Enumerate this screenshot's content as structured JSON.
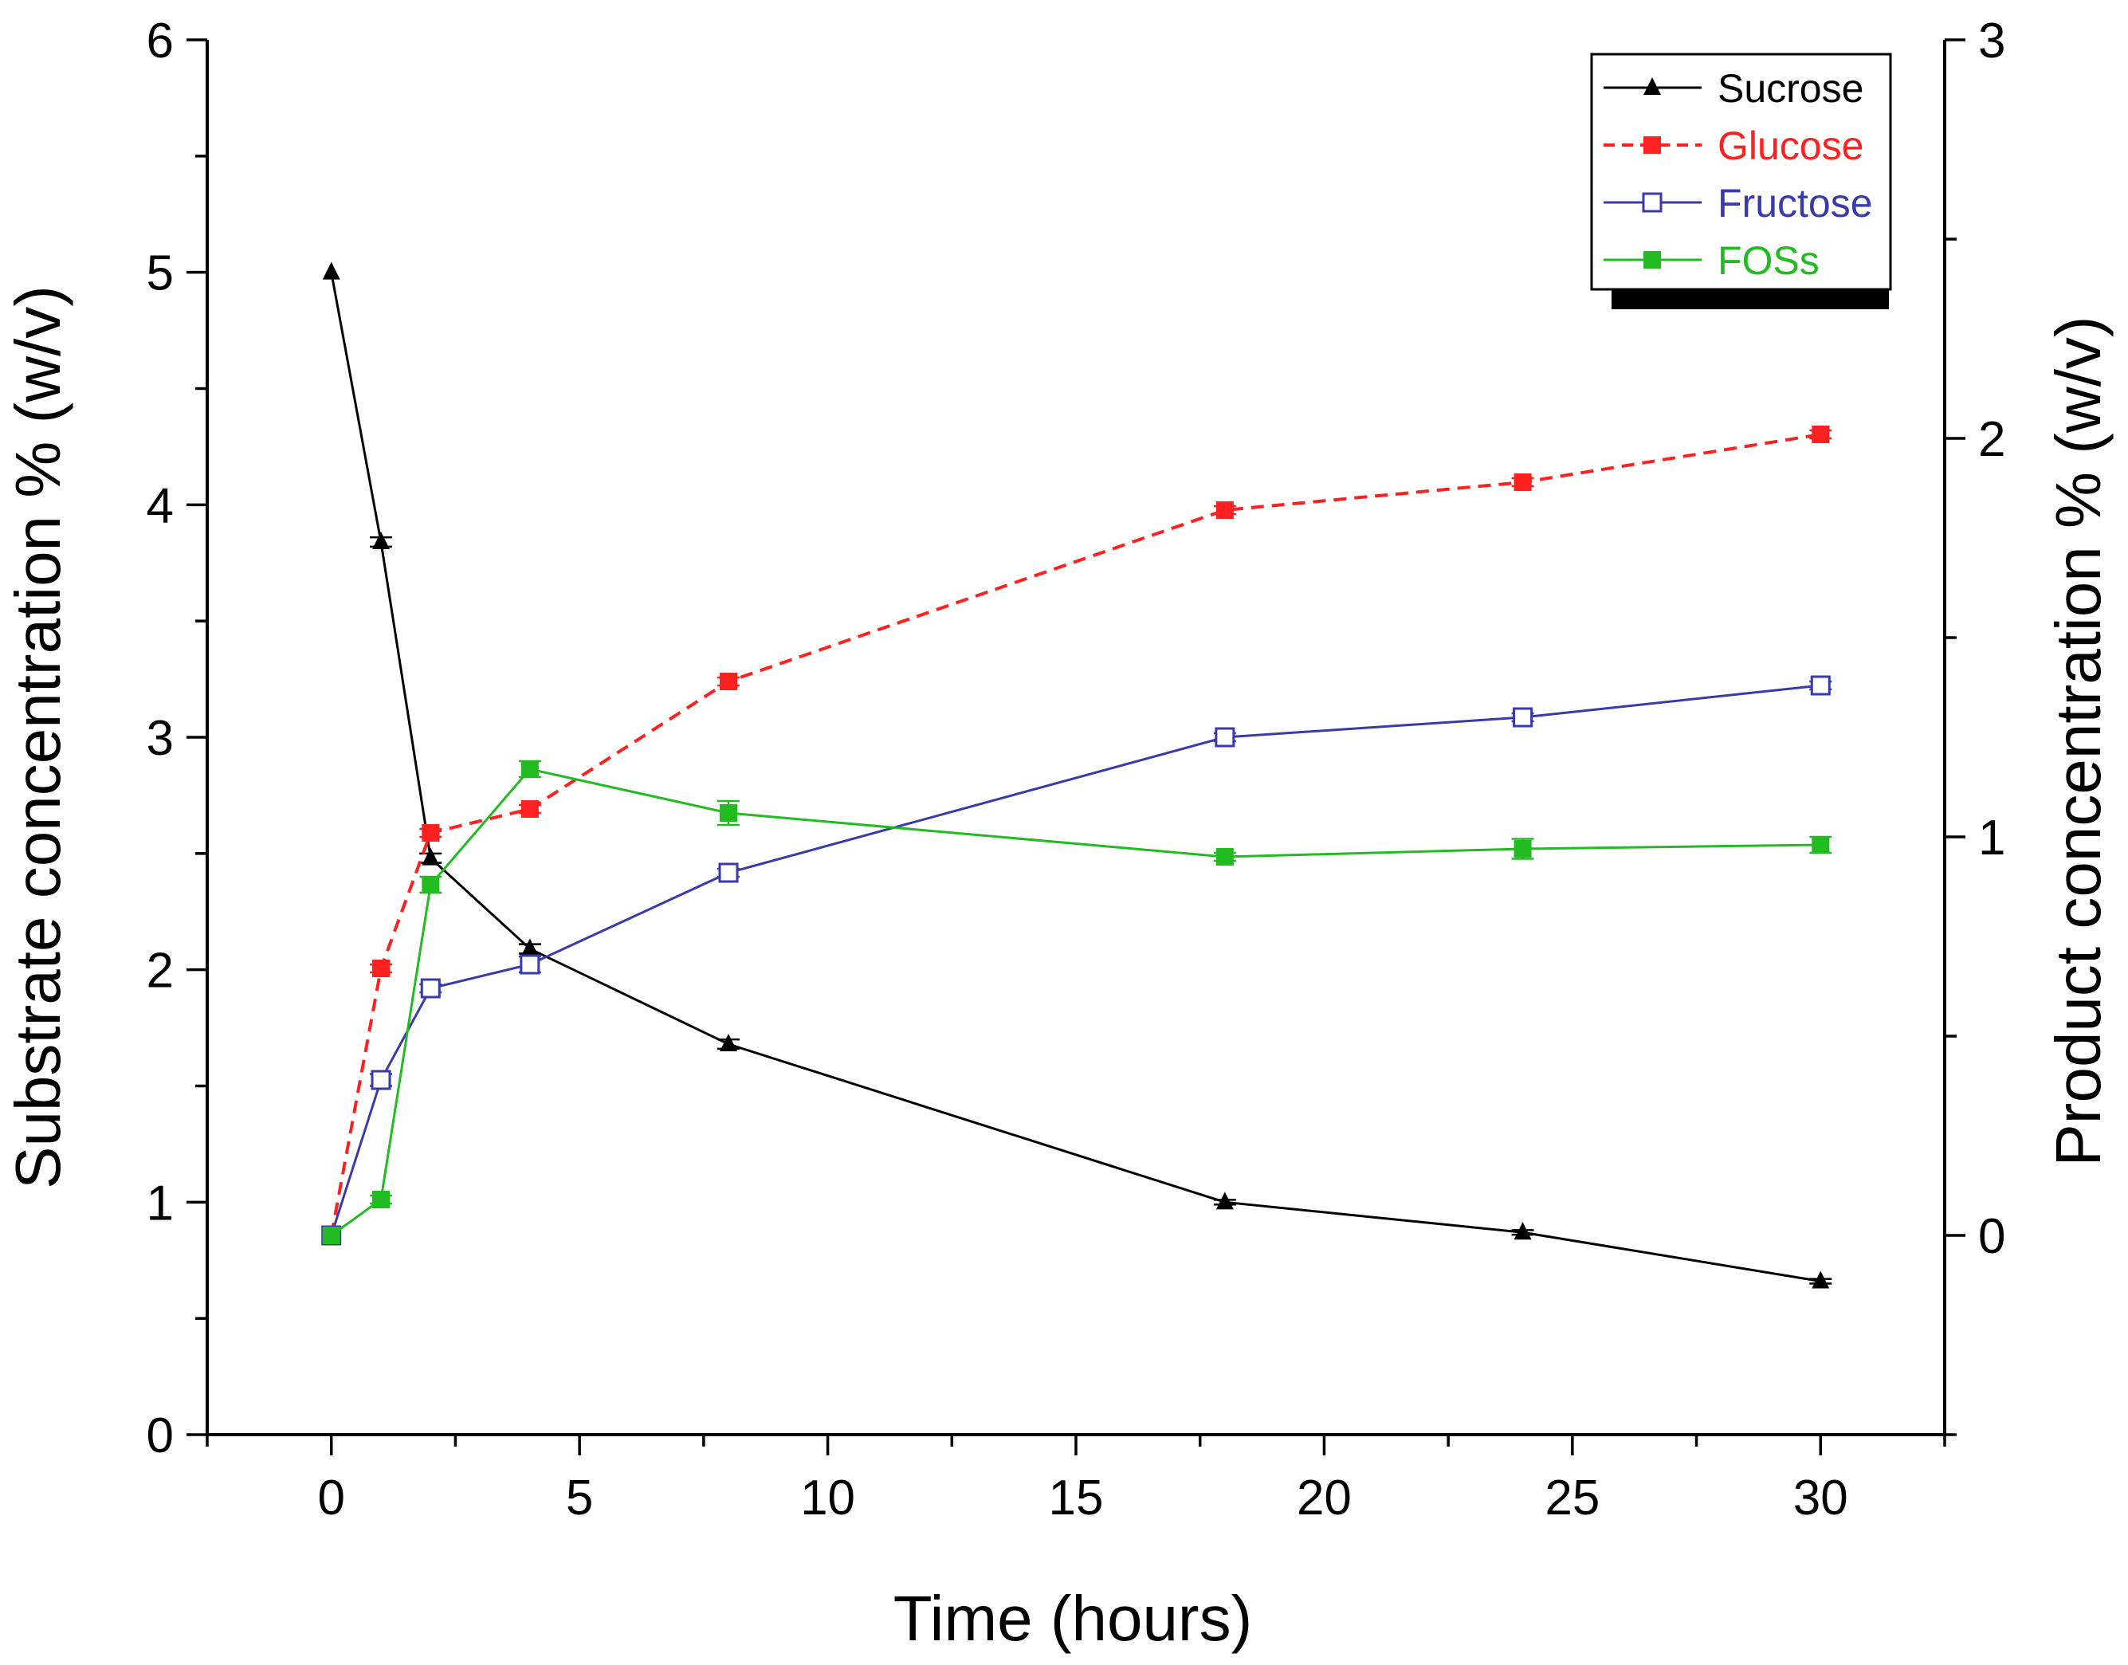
{
  "chart_data": {
    "type": "line",
    "x_axis": {
      "label": "Time (hours)",
      "range": [
        -2.5,
        32.5
      ],
      "ticks": [
        0,
        5,
        10,
        15,
        20,
        25,
        30
      ],
      "minor_step": 2.5
    },
    "y_left": {
      "label": "Substrate concentration % (w/v)",
      "range": [
        0,
        6
      ],
      "ticks": [
        0,
        1,
        2,
        3,
        4,
        5,
        6
      ],
      "minor_step": 0.5
    },
    "y_right": {
      "label": "Product concentration % (w/v)",
      "range": [
        -0.5,
        3
      ],
      "ticks": [
        0,
        1,
        2,
        3
      ],
      "minor_step": 0.5
    },
    "legend_position": "top-right",
    "series": [
      {
        "name": "Sucrose",
        "axis": "left",
        "color": "#000000",
        "line_style": "solid",
        "marker": "filled-triangle",
        "x": [
          0,
          1,
          2,
          4,
          8,
          18,
          24,
          30
        ],
        "y": [
          5.0,
          3.84,
          2.48,
          2.09,
          1.68,
          1.0,
          0.87,
          0.66
        ],
        "error": [
          0,
          0.02,
          0.02,
          0.02,
          0.02,
          0.01,
          0.01,
          0.01
        ]
      },
      {
        "name": "Glucose",
        "axis": "right",
        "color": "#ff2020",
        "line_style": "dashed",
        "marker": "filled-square",
        "x": [
          0,
          1,
          2,
          4,
          8,
          18,
          24,
          30
        ],
        "y": [
          0.0,
          0.67,
          1.01,
          1.07,
          1.39,
          1.82,
          1.89,
          2.01
        ],
        "error": [
          0,
          0.01,
          0.01,
          0.01,
          0.01,
          0.01,
          0.01,
          0.01
        ]
      },
      {
        "name": "Fructose",
        "axis": "right",
        "color": "#3a3aaa",
        "line_style": "solid",
        "marker": "open-square",
        "x": [
          0,
          1,
          2,
          4,
          8,
          18,
          24,
          30
        ],
        "y": [
          0.0,
          0.39,
          0.62,
          0.68,
          0.91,
          1.25,
          1.3,
          1.38
        ],
        "error": [
          0,
          0.015,
          0.01,
          0.02,
          0.01,
          0.01,
          0.01,
          0.01
        ]
      },
      {
        "name": "FOSs",
        "axis": "right",
        "color": "#22bb22",
        "line_style": "solid",
        "marker": "filled-square",
        "x": [
          0,
          1,
          2,
          4,
          8,
          18,
          24,
          30
        ],
        "y": [
          0.0,
          0.09,
          0.88,
          1.17,
          1.06,
          0.95,
          0.97,
          0.98
        ],
        "error": [
          0,
          0.01,
          0.02,
          0.02,
          0.03,
          0.01,
          0.025,
          0.02
        ]
      }
    ]
  }
}
